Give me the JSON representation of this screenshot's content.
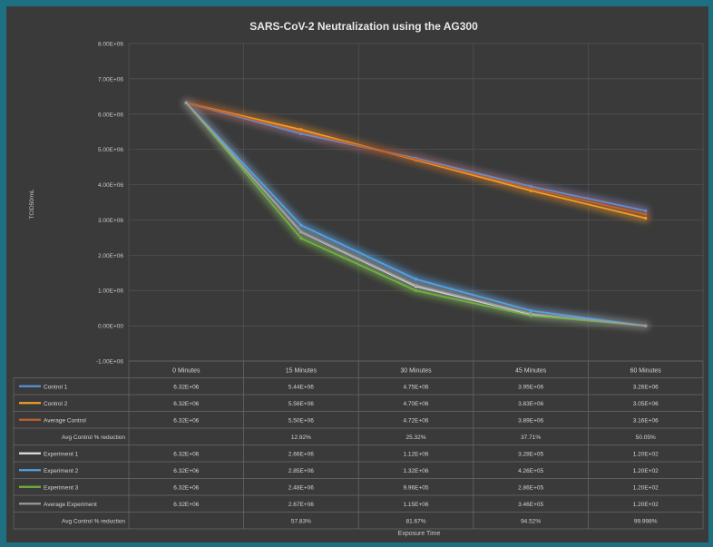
{
  "chart_data": {
    "type": "line",
    "title": "SARS-CoV-2 Neutralization using the AG300",
    "xlabel": "Exposure Time",
    "ylabel": "TCID50/mL",
    "ylim": [
      -1000000,
      8000000
    ],
    "yticks": [
      "-1.00E+06",
      "0.00E+00",
      "1.00E+06",
      "2.00E+06",
      "3.00E+06",
      "4.00E+06",
      "5.00E+06",
      "6.00E+06",
      "7.00E+06",
      "8.00E+06"
    ],
    "ytick_values": [
      -1000000,
      0,
      1000000,
      2000000,
      3000000,
      4000000,
      5000000,
      6000000,
      7000000,
      8000000
    ],
    "categories": [
      "0 Minutes",
      "15 Minutes",
      "30 Minutes",
      "45 Minutes",
      "60 Minutes"
    ],
    "grid": true,
    "legend": "data-table",
    "rows": [
      {
        "name": "Control 1",
        "color": "#5b8fd6",
        "line": true,
        "cells": [
          "6.32E+06",
          "5.44E+06",
          "4.75E+06",
          "3.95E+06",
          "3.26E+06"
        ],
        "values": [
          6320000,
          5440000,
          4750000,
          3950000,
          3260000
        ]
      },
      {
        "name": "Control 2",
        "color": "#f0a020",
        "line": true,
        "cells": [
          "6.32E+06",
          "5.56E+06",
          "4.70E+06",
          "3.83E+06",
          "3.05E+06"
        ],
        "values": [
          6320000,
          5560000,
          4700000,
          3830000,
          3050000
        ]
      },
      {
        "name": "Average Control",
        "color": "#c0622e",
        "line": true,
        "cells": [
          "6.32E+06",
          "5.50E+06",
          "4.72E+06",
          "3.89E+06",
          "3.16E+06"
        ],
        "values": [
          6320000,
          5500000,
          4720000,
          3890000,
          3160000
        ]
      },
      {
        "name": "Avg Control % reduction",
        "color": "",
        "line": false,
        "cells": [
          "",
          "12.92%",
          "25.32%",
          "37.71%",
          "50.05%"
        ]
      },
      {
        "name": "Experiment 1",
        "color": "#e0e0e0",
        "line": true,
        "cells": [
          "6.32E+06",
          "2.66E+06",
          "1.12E+06",
          "3.28E+05",
          "1.20E+02"
        ],
        "values": [
          6320000,
          2660000,
          1120000,
          328000,
          120
        ]
      },
      {
        "name": "Experiment 2",
        "color": "#4ea3e8",
        "line": true,
        "cells": [
          "6.32E+06",
          "2.85E+06",
          "1.32E+06",
          "4.26E+05",
          "1.20E+02"
        ],
        "values": [
          6320000,
          2850000,
          1320000,
          426000,
          120
        ]
      },
      {
        "name": "Experiment 3",
        "color": "#6fb33a",
        "line": true,
        "cells": [
          "6.32E+06",
          "2.48E+06",
          "9.96E+05",
          "2.86E+05",
          "1.20E+02"
        ],
        "values": [
          6320000,
          2480000,
          996000,
          286000,
          120
        ]
      },
      {
        "name": "Average Experiment",
        "color": "#9a9a9a",
        "line": true,
        "cells": [
          "6.32E+06",
          "2.67E+06",
          "1.15E+06",
          "3.46E+05",
          "1.20E+02"
        ],
        "values": [
          6320000,
          2670000,
          1150000,
          346000,
          120
        ]
      },
      {
        "name": "Avg Control % reduction",
        "color": "",
        "line": false,
        "cells": [
          "",
          "57.83%",
          "81.67%",
          "94.52%",
          "99.998%"
        ]
      }
    ]
  }
}
